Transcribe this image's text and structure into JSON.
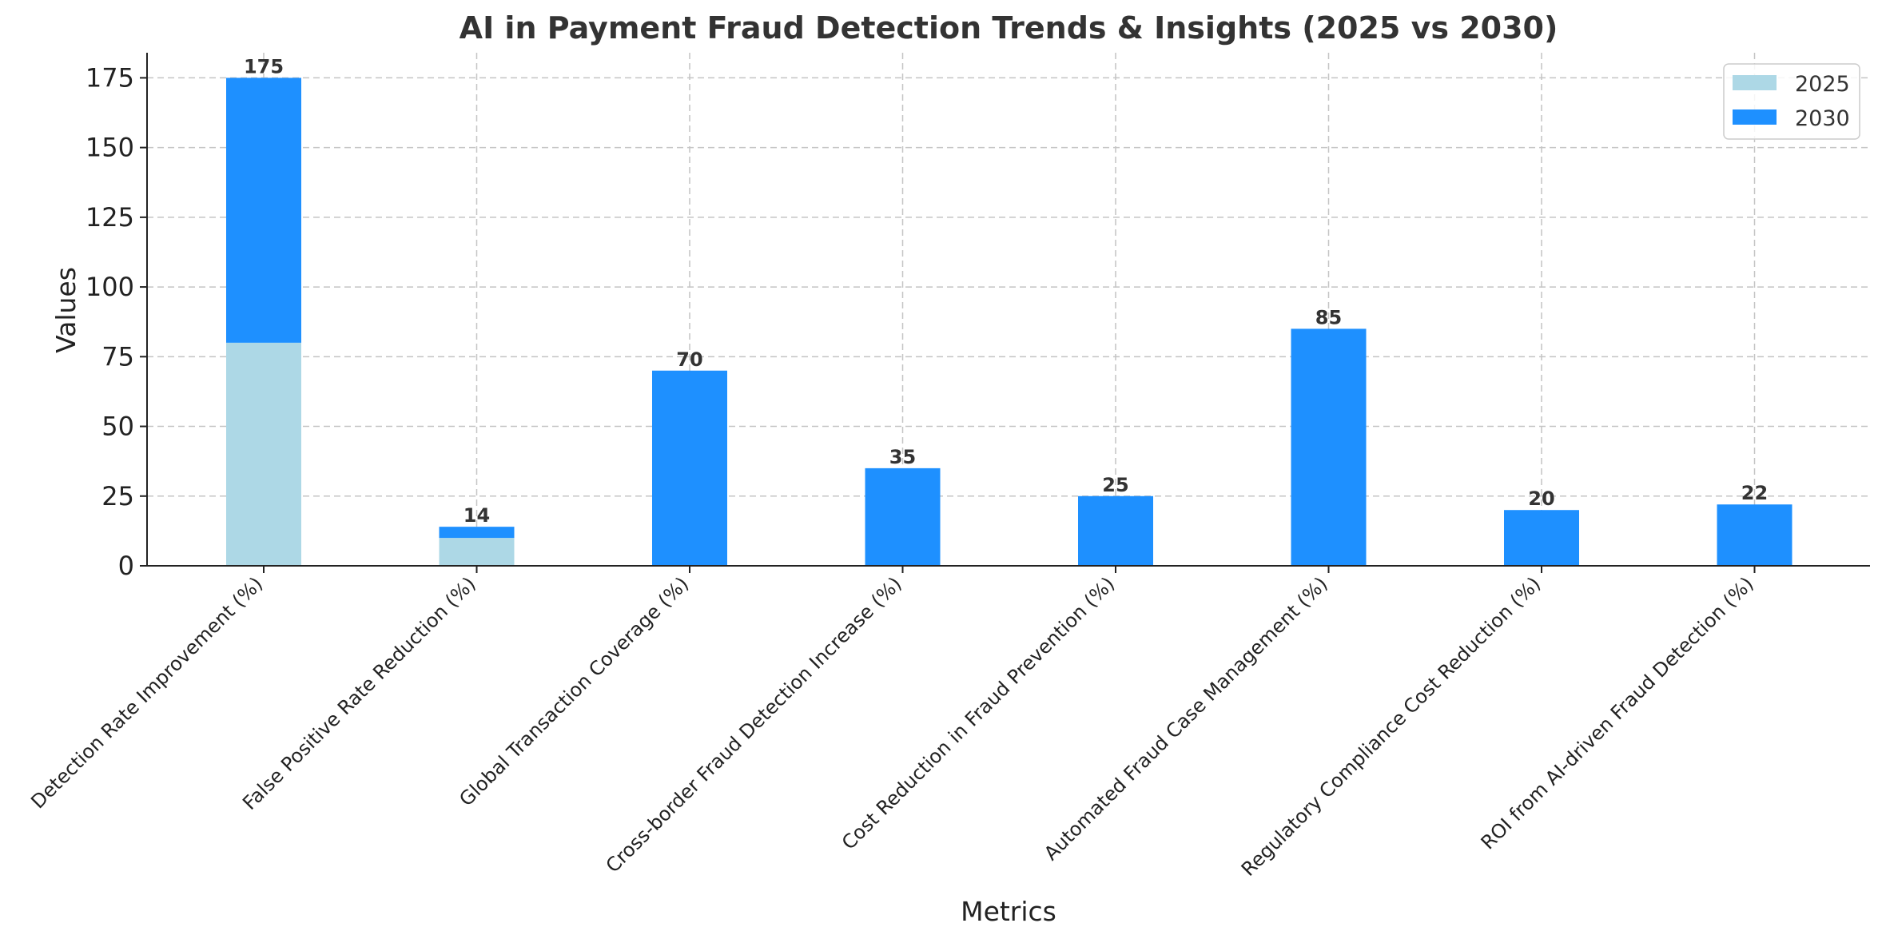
{
  "chart_data": {
    "type": "bar",
    "stacked": true,
    "title": "AI in Payment Fraud Detection Trends & Insights (2025 vs 2030)",
    "xlabel": "Metrics",
    "ylabel": "Values",
    "ylim": [
      0,
      184
    ],
    "yticks": [
      0,
      25,
      50,
      75,
      100,
      125,
      150,
      175
    ],
    "grid": true,
    "legend_position": "top-right",
    "categories": [
      "Detection Rate Improvement (%)",
      "False Positive Rate Reduction (%)",
      "Global Transaction Coverage (%)",
      "Cross-border Fraud Detection Increase (%)",
      "Cost Reduction in Fraud Prevention (%)",
      "Automated Fraud Case Management (%)",
      "Regulatory Compliance Cost Reduction (%)",
      "ROI from AI-driven Fraud Detection (%)"
    ],
    "series": [
      {
        "name": "2025",
        "color": "#add8e6",
        "values": [
          80,
          10,
          0,
          0,
          0,
          0,
          0,
          0
        ]
      },
      {
        "name": "2030",
        "color": "#1e90ff",
        "values": [
          95,
          4,
          70,
          35,
          25,
          85,
          20,
          22
        ]
      }
    ],
    "data_labels": [
      "175",
      "14",
      "70",
      "35",
      "25",
      "85",
      "20",
      "22"
    ]
  }
}
